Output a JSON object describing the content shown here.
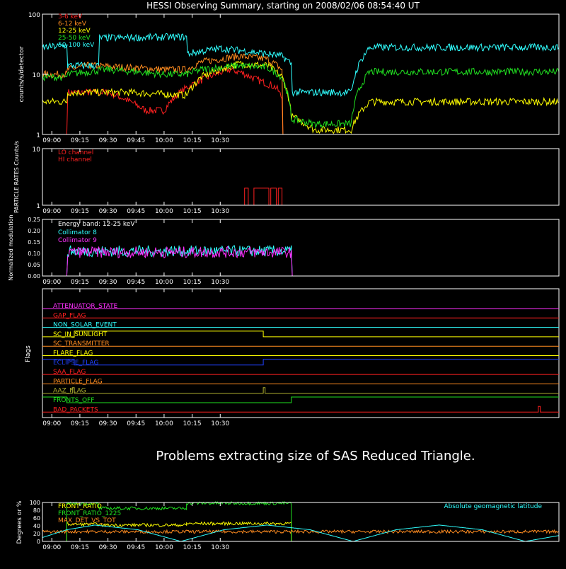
{
  "title": "HESSI Observing Summary, starting on 2008/02/06 08:54:40 UT",
  "message": "Problems extracting size of SAS Reduced Triangle.",
  "time_ticks": [
    "09:00",
    "09:15",
    "09:30",
    "09:45",
    "10:00",
    "10:15",
    "10:30"
  ],
  "colors": {
    "red": "#ff2020",
    "orange": "#ff8c20",
    "yellow": "#ffff00",
    "green": "#20e020",
    "cyan": "#30ffff",
    "magenta": "#ff30ff",
    "blue": "#2040ff",
    "olive": "#b0b030"
  },
  "chart_data": [
    {
      "id": "count-rates",
      "type": "line",
      "ylabel": "counts/s/detector",
      "yscale": "log",
      "ylim": [
        1,
        100
      ],
      "y_tick_labels": [
        "1",
        "10",
        "100"
      ],
      "xlim_minutes_of_day": [
        535,
        811
      ],
      "series": [
        {
          "name": "3-6 keV",
          "color": "#ff2020",
          "x": [
            535,
            548,
            548.5,
            570,
            590,
            600,
            612,
            620,
            635,
            640,
            650,
            660,
            663,
            663.5
          ],
          "y": [
            1,
            1,
            5,
            5,
            2.5,
            2.5,
            6,
            8,
            12,
            11,
            8,
            6,
            4,
            1
          ]
        },
        {
          "name": "6-12 keV",
          "color": "#ff8c20",
          "x": [
            535,
            548,
            548.5,
            560,
            580,
            600,
            612,
            620,
            640,
            655,
            663,
            663.5
          ],
          "y": [
            10,
            10,
            12,
            14,
            13,
            12,
            12,
            16,
            20,
            18,
            12,
            1
          ]
        },
        {
          "name": "12-25 keV",
          "color": "#ffff00",
          "x": [
            535,
            548,
            548.5,
            580,
            612,
            620,
            640,
            655,
            663,
            668,
            680,
            700,
            710,
            811
          ],
          "y": [
            3.5,
            3.5,
            5,
            5,
            4.5,
            9,
            15,
            14,
            9,
            2,
            1.2,
            1.2,
            3.5,
            3.5
          ]
        },
        {
          "name": "25-50 keV",
          "color": "#20e020",
          "x": [
            535,
            548,
            548.5,
            570,
            600,
            612,
            620,
            640,
            655,
            663,
            668,
            680,
            700,
            710,
            811
          ],
          "y": [
            9,
            9,
            10,
            12,
            10,
            10,
            12,
            14,
            13,
            9,
            1.8,
            1.5,
            1.5,
            11,
            11
          ]
        },
        {
          "name": "50-100 keV",
          "color": "#30ffff",
          "x": [
            535,
            548,
            548.5,
            565,
            565.5,
            612,
            612.5,
            630,
            650,
            663,
            668,
            668.5,
            700,
            710,
            710.5,
            811
          ],
          "y": [
            28,
            30,
            14,
            14,
            40,
            42,
            22,
            27,
            23,
            20,
            15,
            5,
            5,
            28,
            28,
            28
          ]
        }
      ]
    },
    {
      "id": "particle-rates",
      "type": "line",
      "ylabel": "PARTICLE RATES Counts/s",
      "yscale": "log",
      "ylim": [
        1,
        10
      ],
      "y_tick_labels": [
        "1",
        "10"
      ],
      "series": [
        {
          "name": "LO channel",
          "color": "#ff2020",
          "x": [
            535,
            811
          ],
          "y": [
            1,
            1
          ]
        },
        {
          "name": "HI channel",
          "color": "#ff2020",
          "x": [
            535,
            643,
            643,
            645,
            645,
            648,
            648,
            656,
            656,
            657,
            657,
            660,
            660,
            661,
            661,
            663,
            663,
            664,
            664,
            811
          ],
          "y": [
            1,
            1,
            2,
            2,
            1,
            1,
            2,
            2,
            1,
            1,
            2,
            2,
            1,
            1,
            2,
            2,
            1,
            1,
            1,
            1
          ]
        }
      ]
    },
    {
      "id": "modulation",
      "type": "line",
      "ylabel": "Normalized modulation",
      "ylim": [
        0,
        0.25
      ],
      "y_tick_labels": [
        "0.00",
        "0.05",
        "0.10",
        "0.15",
        "0.20",
        "0.25"
      ],
      "annotation": "Energy band: 12-25 keV",
      "series": [
        {
          "name": "Collimator 8",
          "color": "#30ffff",
          "x": [
            535,
            548,
            548.5,
            668,
            668.5,
            811
          ],
          "y": [
            0,
            0,
            0.11,
            0.11,
            0,
            0
          ]
        },
        {
          "name": "Collimator 9",
          "color": "#ff30ff",
          "x": [
            535,
            548,
            548.5,
            668,
            668.5,
            811
          ],
          "y": [
            0,
            0,
            0.105,
            0.105,
            0,
            0
          ]
        }
      ]
    },
    {
      "id": "flags",
      "type": "line",
      "ylabel": "Flags",
      "flags": [
        {
          "name": "ATTENUATOR_STATE",
          "color": "#ff30ff",
          "x": [
            535,
            811
          ],
          "y": [
            0,
            0
          ]
        },
        {
          "name": "GAP_FLAG",
          "color": "#ff2020",
          "x": [
            535,
            811
          ],
          "y": [
            0,
            0
          ]
        },
        {
          "name": "NON_SOLAR_EVENT",
          "color": "#30ffff",
          "x": [
            535,
            811
          ],
          "y": [
            0,
            0
          ]
        },
        {
          "name": "SC_IN_SUNLIGHT",
          "color": "#ffff00",
          "x": [
            535,
            552,
            552,
            653,
            653,
            811
          ],
          "y": [
            0,
            0,
            1,
            1,
            0,
            0
          ]
        },
        {
          "name": "SC_TRANSMITTER",
          "color": "#ff8c20",
          "x": [
            535,
            811
          ],
          "y": [
            0,
            0
          ]
        },
        {
          "name": "FLARE_FLAG",
          "color": "#ffff00",
          "x": [
            535,
            811
          ],
          "y": [
            0,
            0
          ]
        },
        {
          "name": "ECLIPSE_FLAG",
          "color": "#2040ff",
          "x": [
            535,
            552,
            552,
            653,
            653,
            811
          ],
          "y": [
            1,
            1,
            0,
            0,
            1,
            1
          ]
        },
        {
          "name": "SAA_FLAG",
          "color": "#ff2020",
          "x": [
            535,
            811
          ],
          "y": [
            0,
            0
          ]
        },
        {
          "name": "PARTICLE_FLAG",
          "color": "#ff8c20",
          "x": [
            535,
            811
          ],
          "y": [
            0,
            0
          ]
        },
        {
          "name": "AAZ_FLAG",
          "color": "#b0b030",
          "x": [
            535,
            551,
            551,
            552,
            552,
            653,
            653,
            654,
            654,
            811
          ],
          "y": [
            0,
            0,
            1,
            1,
            0,
            0,
            1,
            1,
            0,
            0
          ]
        },
        {
          "name": "FRONTS_OFF",
          "color": "#20e020",
          "x": [
            535,
            548,
            548,
            668,
            668,
            811
          ],
          "y": [
            1,
            1,
            0,
            0,
            1,
            1
          ]
        },
        {
          "name": "BAD_PACKETS",
          "color": "#ff2020",
          "x": [
            535,
            800,
            800,
            801,
            801,
            811
          ],
          "y": [
            0,
            0,
            1,
            1,
            0,
            0
          ]
        }
      ]
    },
    {
      "id": "ratios",
      "type": "line",
      "ylabel": "Degrees or %",
      "ylim": [
        0,
        100
      ],
      "y_tick_labels": [
        "0",
        "20",
        "40",
        "60",
        "80",
        "100"
      ],
      "annotation": "Absolute geomagnetic latitude",
      "series": [
        {
          "name": "FRONT_RATIO",
          "color": "#ffff00",
          "x": [
            535,
            548,
            548,
            565,
            565,
            612,
            612,
            668,
            668,
            811
          ],
          "y": [
            0,
            0,
            44,
            44,
            42,
            42,
            46,
            46,
            0,
            0
          ]
        },
        {
          "name": "FRONT_RATIO_1225",
          "color": "#20e020",
          "x": [
            535,
            548,
            548,
            565,
            565,
            612,
            612,
            668,
            668,
            811
          ],
          "y": [
            0,
            0,
            97,
            97,
            85,
            85,
            98,
            98,
            0,
            0
          ]
        },
        {
          "name": "MAX_DET_VS_TOT",
          "color": "#ff8c20",
          "x": [
            535,
            811
          ],
          "y": [
            25,
            25
          ]
        },
        {
          "name": "Absolute geomagnetic latitude",
          "color": "#30ffff",
          "x": [
            535,
            548,
            563,
            586,
            609,
            632,
            655,
            678,
            701,
            724,
            747,
            770,
            793,
            811
          ],
          "y": [
            10,
            30,
            42,
            30,
            0,
            30,
            42,
            30,
            0,
            30,
            42,
            30,
            0,
            15
          ]
        }
      ]
    }
  ]
}
